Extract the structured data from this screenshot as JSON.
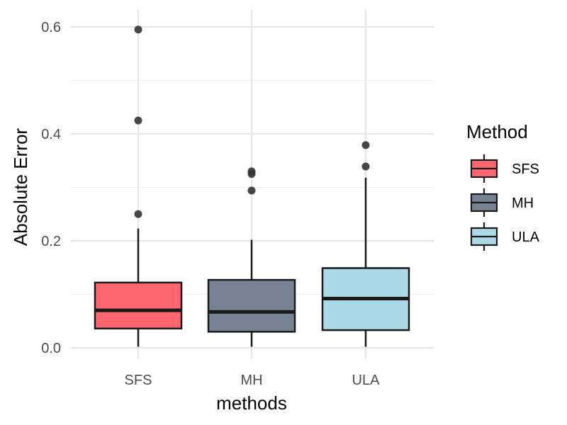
{
  "chart_data": {
    "type": "boxplot",
    "title": "",
    "xlabel": "methods",
    "ylabel": "Absolute Error",
    "ylim": [
      -0.02,
      0.62
    ],
    "yticks": [
      0.0,
      0.2,
      0.4,
      0.6
    ],
    "ytick_labels": [
      "0.0",
      "0.2",
      "0.4",
      "0.6"
    ],
    "categories": [
      "SFS",
      "MH",
      "ULA"
    ],
    "legend": {
      "title": "Method",
      "position": "right"
    },
    "series": [
      {
        "name": "SFS",
        "color": "#ff6670",
        "whisker_low": 0.002,
        "q1": 0.036,
        "median": 0.07,
        "q3": 0.122,
        "whisker_high": 0.223,
        "outliers": [
          0.25,
          0.425,
          0.595
        ]
      },
      {
        "name": "MH",
        "color": "#778392",
        "whisker_low": 0.002,
        "q1": 0.03,
        "median": 0.067,
        "q3": 0.127,
        "whisker_high": 0.202,
        "outliers": [
          0.294,
          0.325,
          0.33
        ]
      },
      {
        "name": "ULA",
        "color": "#acd9e6",
        "whisker_low": 0.002,
        "q1": 0.033,
        "median": 0.092,
        "q3": 0.149,
        "whisker_high": 0.318,
        "outliers": [
          0.339,
          0.379
        ]
      }
    ]
  }
}
